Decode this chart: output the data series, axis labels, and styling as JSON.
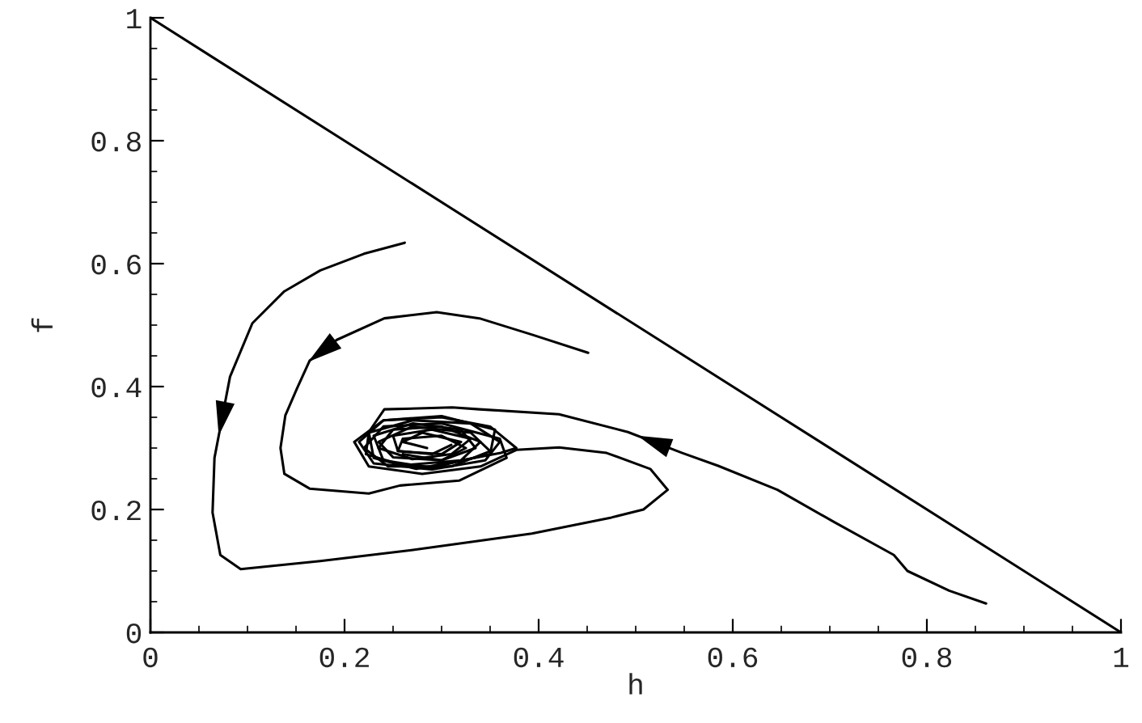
{
  "chart_data": {
    "type": "line",
    "xlabel": "h",
    "ylabel": "f",
    "xlim": [
      0,
      1
    ],
    "ylim": [
      0,
      1
    ],
    "xticks": [
      0,
      {
        "value": 0.05,
        "label": null
      },
      {
        "value": 0.1,
        "label": null
      },
      {
        "value": 0.15,
        "label": null
      },
      0.2,
      {
        "value": 0.25,
        "label": null
      },
      {
        "value": 0.3,
        "label": null
      },
      {
        "value": 0.35,
        "label": null
      },
      0.4,
      {
        "value": 0.45,
        "label": null
      },
      {
        "value": 0.5,
        "label": null
      },
      {
        "value": 0.55,
        "label": null
      },
      0.6,
      {
        "value": 0.65,
        "label": null
      },
      {
        "value": 0.7,
        "label": null
      },
      {
        "value": 0.75,
        "label": null
      },
      0.8,
      {
        "value": 0.85,
        "label": null
      },
      {
        "value": 0.9,
        "label": null
      },
      {
        "value": 0.95,
        "label": null
      },
      1
    ],
    "yticks": [
      0,
      {
        "value": 0.05,
        "label": null
      },
      {
        "value": 0.1,
        "label": null
      },
      {
        "value": 0.15,
        "label": null
      },
      0.2,
      {
        "value": 0.25,
        "label": null
      },
      {
        "value": 0.3,
        "label": null
      },
      {
        "value": 0.35,
        "label": null
      },
      0.4,
      {
        "value": 0.45,
        "label": null
      },
      {
        "value": 0.5,
        "label": null
      },
      {
        "value": 0.55,
        "label": null
      },
      0.6,
      {
        "value": 0.65,
        "label": null
      },
      {
        "value": 0.7,
        "label": null
      },
      {
        "value": 0.75,
        "label": null
      },
      0.8,
      {
        "value": 0.85,
        "label": null
      },
      {
        "value": 0.9,
        "label": null
      },
      {
        "value": 0.95,
        "label": null
      },
      1
    ],
    "grid": false,
    "legend": false,
    "marker": "none",
    "line_style": "solid",
    "series": [
      {
        "color": "#000000",
        "x": [
          0,
          1
        ],
        "values": [
          1,
          0
        ]
      },
      {
        "color": "#000000",
        "x": [
          0.861,
          0.823,
          0.78,
          0.766,
          0.705,
          0.646,
          0.585,
          0.548,
          0.492,
          0.421,
          0.339,
          0.311,
          0.241,
          0.225,
          0.23,
          0.274,
          0.361,
          0.377,
          0.35,
          0.3,
          0.24,
          0.215,
          0.23,
          0.29,
          0.345,
          0.36,
          0.33,
          0.27,
          0.225,
          0.222,
          0.26,
          0.32,
          0.34,
          0.3,
          0.25,
          0.235,
          0.27,
          0.31,
          0.33,
          0.29,
          0.25,
          0.255,
          0.3,
          0.32,
          0.28,
          0.26,
          0.285
        ],
        "values": [
          0.047,
          0.068,
          0.1,
          0.126,
          0.179,
          0.232,
          0.271,
          0.292,
          0.326,
          0.355,
          0.363,
          0.366,
          0.363,
          0.326,
          0.284,
          0.266,
          0.292,
          0.3,
          0.335,
          0.35,
          0.345,
          0.31,
          0.275,
          0.265,
          0.28,
          0.31,
          0.34,
          0.345,
          0.325,
          0.29,
          0.272,
          0.28,
          0.31,
          0.335,
          0.33,
          0.3,
          0.282,
          0.29,
          0.315,
          0.33,
          0.32,
          0.295,
          0.29,
          0.31,
          0.325,
          0.31,
          0.3
        ]
      },
      {
        "color": "#000000",
        "x": [
          0.451,
          0.394,
          0.339,
          0.295,
          0.241,
          0.192,
          0.164,
          0.151,
          0.139,
          0.134,
          0.138,
          0.164,
          0.225,
          0.257,
          0.318,
          0.367,
          0.36,
          0.3,
          0.24,
          0.22,
          0.245,
          0.31,
          0.35,
          0.33,
          0.27,
          0.235,
          0.25,
          0.3,
          0.325,
          0.3,
          0.26,
          0.255,
          0.29,
          0.31
        ],
        "values": [
          0.455,
          0.484,
          0.511,
          0.521,
          0.511,
          0.476,
          0.442,
          0.397,
          0.353,
          0.3,
          0.258,
          0.234,
          0.226,
          0.239,
          0.247,
          0.284,
          0.315,
          0.34,
          0.335,
          0.3,
          0.27,
          0.27,
          0.295,
          0.325,
          0.335,
          0.31,
          0.285,
          0.28,
          0.3,
          0.32,
          0.315,
          0.295,
          0.29,
          0.305
        ]
      },
      {
        "color": "#000000",
        "x": [
          0.262,
          0.22,
          0.175,
          0.138,
          0.105,
          0.082,
          0.066,
          0.064,
          0.072,
          0.093,
          0.175,
          0.269,
          0.393,
          0.475,
          0.508,
          0.533,
          0.515,
          0.47,
          0.421,
          0.377,
          0.34,
          0.28,
          0.225,
          0.21,
          0.24,
          0.3,
          0.355,
          0.35,
          0.29,
          0.24,
          0.23,
          0.27,
          0.32,
          0.335,
          0.3,
          0.26
        ],
        "values": [
          0.634,
          0.616,
          0.589,
          0.555,
          0.503,
          0.416,
          0.284,
          0.195,
          0.126,
          0.103,
          0.116,
          0.134,
          0.161,
          0.187,
          0.2,
          0.232,
          0.266,
          0.292,
          0.301,
          0.297,
          0.27,
          0.258,
          0.27,
          0.31,
          0.345,
          0.352,
          0.33,
          0.29,
          0.268,
          0.28,
          0.32,
          0.34,
          0.33,
          0.3,
          0.28,
          0.29
        ]
      }
    ]
  }
}
